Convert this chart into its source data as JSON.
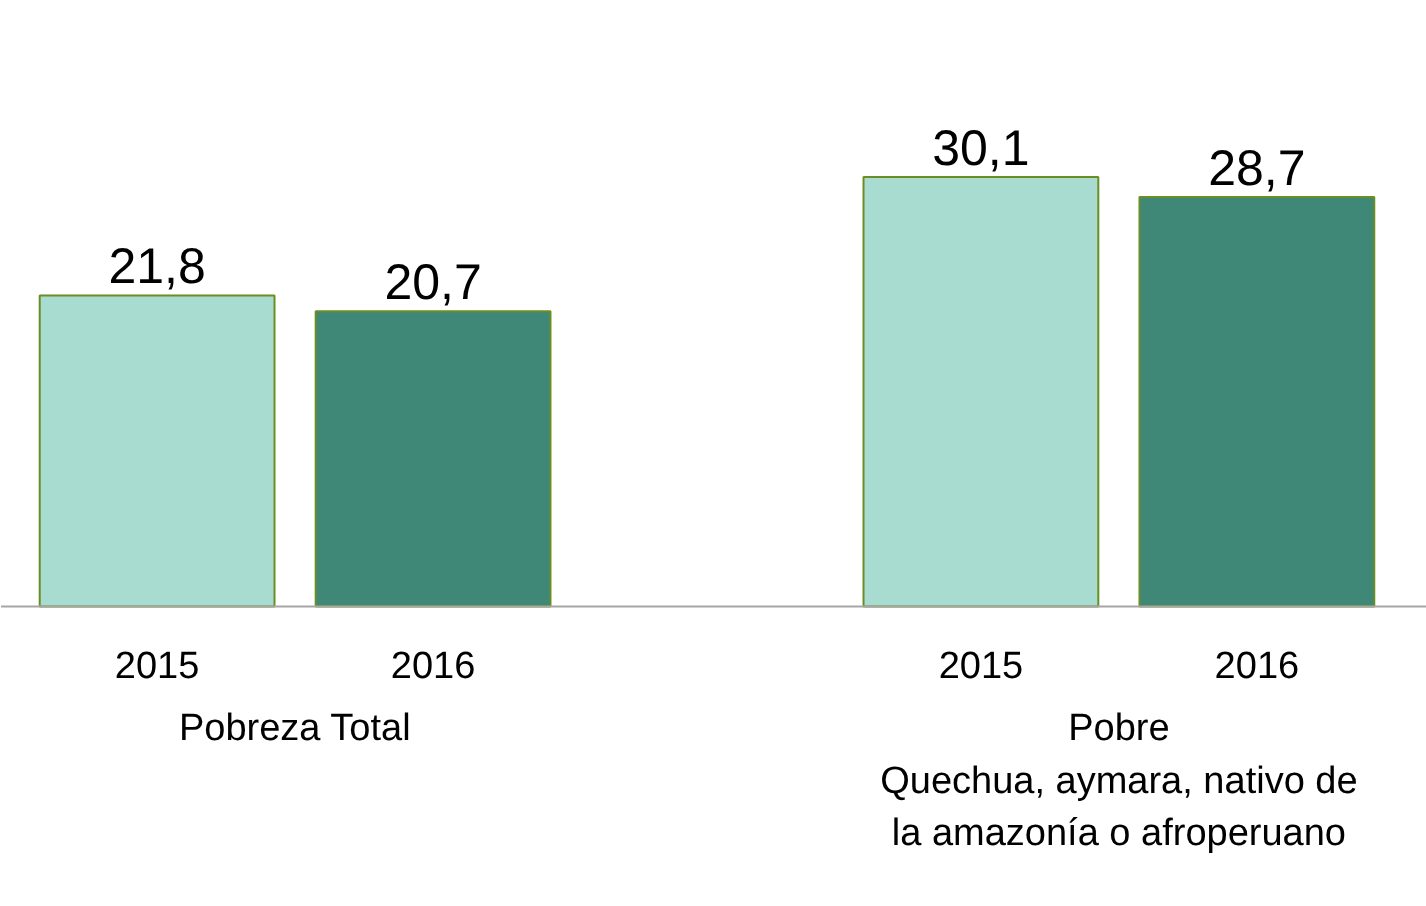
{
  "chart_data": {
    "type": "bar",
    "categories": [
      "Pobreza Total",
      "Pobre\nQuechua, aymara, nativo de\nla amazonía o afroperuano"
    ],
    "series": [
      {
        "name": "2015",
        "color": "#a8dcd1",
        "values": [
          21.8,
          30.1
        ],
        "value_labels": [
          "21,8",
          "30,1"
        ]
      },
      {
        "name": "2016",
        "color": "#3f8777",
        "values": [
          20.7,
          28.7
        ],
        "value_labels": [
          "20,7",
          "28,7"
        ]
      }
    ],
    "relative": false,
    "legend": false,
    "grid": false
  }
}
